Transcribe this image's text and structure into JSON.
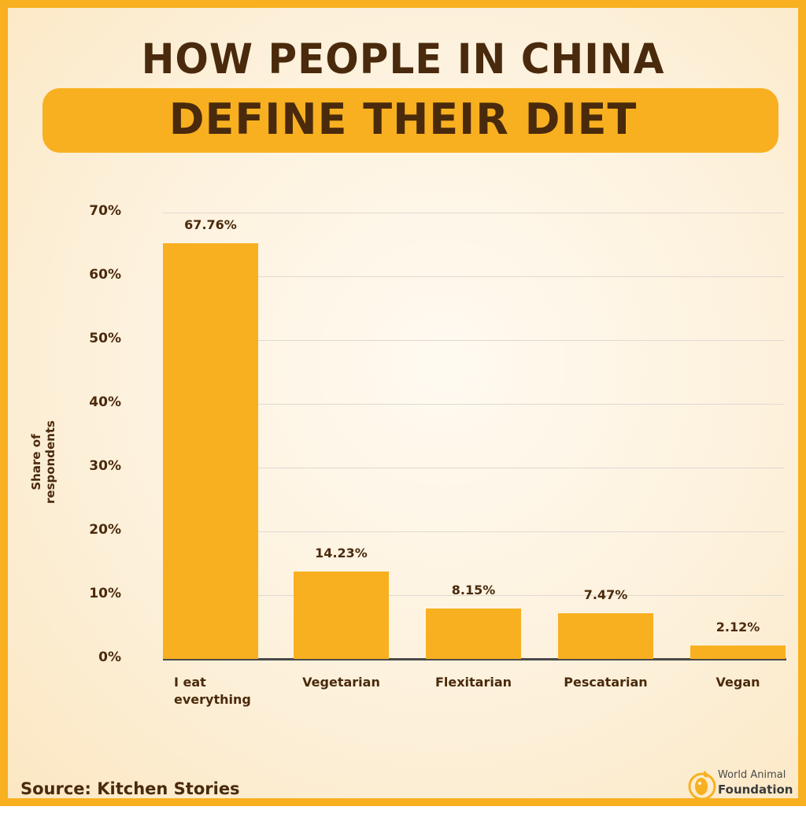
{
  "header": {
    "title_line1": "HOW PEOPLE IN CHINA",
    "title_line2": "DEFINE THEIR DIET"
  },
  "footer": {
    "source": "Source: Kitchen Stories",
    "logo_line1": "World Animal",
    "logo_line2": "Foundation"
  },
  "colors": {
    "bar": "#f8b020",
    "text": "#4a2a0c",
    "frame": "#f8b020"
  },
  "chart_data": {
    "type": "bar",
    "title": "How People in China Define Their Diet",
    "xlabel": "",
    "ylabel": "Share of respondents",
    "categories": [
      "I eat everything",
      "Vegetarian",
      "Flexitarian",
      "Pescatarian",
      "Vegan"
    ],
    "category_lines": [
      [
        "I eat",
        "everything"
      ],
      [
        "Vegetarian"
      ],
      [
        "Flexitarian"
      ],
      [
        "Pescatarian"
      ],
      [
        "Vegan"
      ]
    ],
    "values": [
      67.76,
      14.23,
      8.15,
      7.47,
      2.12
    ],
    "value_labels": [
      "67.76%",
      "14.23%",
      "8.15%",
      "7.47%",
      "2.12%"
    ],
    "yticks": [
      "0%",
      "10%",
      "20%",
      "30%",
      "40%",
      "50%",
      "60%",
      "70%"
    ],
    "ylim": [
      0,
      70
    ],
    "grid": true,
    "legend": null,
    "source": "Kitchen Stories"
  }
}
